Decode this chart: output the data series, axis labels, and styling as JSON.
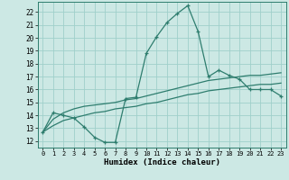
{
  "xlabel": "Humidex (Indice chaleur)",
  "x": [
    0,
    1,
    2,
    3,
    4,
    5,
    6,
    7,
    8,
    9,
    10,
    11,
    12,
    13,
    14,
    15,
    16,
    17,
    18,
    19,
    20,
    21,
    22,
    23
  ],
  "line1": [
    12.7,
    14.2,
    14.0,
    13.8,
    13.1,
    12.3,
    11.9,
    11.9,
    15.3,
    15.4,
    18.8,
    20.1,
    21.2,
    21.9,
    22.5,
    20.5,
    17.0,
    17.5,
    17.1,
    16.8,
    16.0,
    16.0,
    16.0,
    15.5
  ],
  "line2": [
    12.7,
    13.2,
    13.6,
    13.8,
    14.0,
    14.2,
    14.3,
    14.5,
    14.6,
    14.7,
    14.9,
    15.0,
    15.2,
    15.4,
    15.6,
    15.7,
    15.9,
    16.0,
    16.1,
    16.2,
    16.3,
    16.4,
    16.4,
    16.5
  ],
  "line3": [
    12.7,
    13.7,
    14.2,
    14.5,
    14.7,
    14.8,
    14.9,
    15.0,
    15.2,
    15.3,
    15.5,
    15.7,
    15.9,
    16.1,
    16.3,
    16.5,
    16.7,
    16.8,
    16.9,
    17.0,
    17.1,
    17.1,
    17.2,
    17.3
  ],
  "line_color": "#2e7d6e",
  "bg_color": "#cce8e4",
  "grid_color": "#9fcfca",
  "ylim": [
    11.5,
    22.8
  ],
  "yticks": [
    12,
    13,
    14,
    15,
    16,
    17,
    18,
    19,
    20,
    21,
    22
  ],
  "xticks": [
    0,
    1,
    2,
    3,
    4,
    5,
    6,
    7,
    8,
    9,
    10,
    11,
    12,
    13,
    14,
    15,
    16,
    17,
    18,
    19,
    20,
    21,
    22,
    23
  ]
}
